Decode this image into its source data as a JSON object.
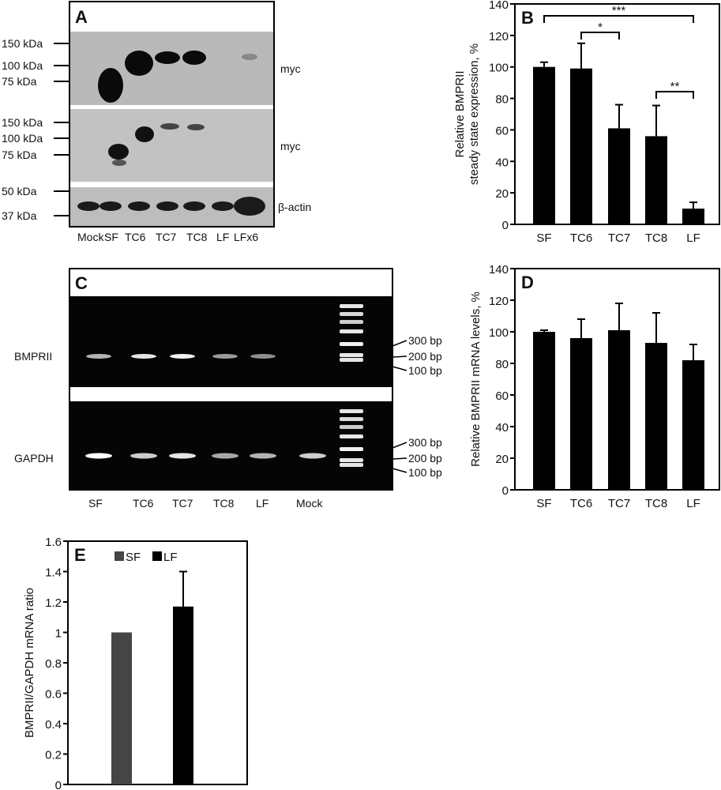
{
  "panel_a": {
    "letter": "A",
    "blot1_markers": [
      "150 kDa",
      "100 kDa",
      "75 kDa"
    ],
    "blot2_markers": [
      "150 kDa",
      "100 kDa",
      "75 kDa"
    ],
    "blot3_markers": [
      "50 kDa",
      "37 kDa"
    ],
    "blot1_label": "myc",
    "blot2_label": "myc",
    "blot3_label": "β-actin",
    "lanes": [
      "Mock",
      "SF",
      "TC6",
      "TC7",
      "TC8",
      "LF",
      "LFx6"
    ]
  },
  "panel_c": {
    "letter": "C",
    "gel1_label": "BMPRII",
    "gel2_label": "GAPDH",
    "ladder1": [
      "300 bp",
      "200 bp",
      "100 bp"
    ],
    "ladder2": [
      "300 bp",
      "200 bp",
      "100 bp"
    ],
    "lanes": [
      "SF",
      "TC6",
      "TC7",
      "TC8",
      "LF",
      "Mock"
    ]
  },
  "chart_data": [
    {
      "id": "B",
      "type": "bar",
      "letter": "B",
      "categories": [
        "SF",
        "TC6",
        "TC7",
        "TC8",
        "LF"
      ],
      "values": [
        100,
        99,
        61,
        56,
        10
      ],
      "errors": [
        3,
        16,
        15,
        19.5,
        4
      ],
      "ylabel_line1": "Relative BMPRII",
      "ylabel_line2": "steady state expression, %",
      "ylim": [
        0,
        140
      ],
      "yticks": [
        "0",
        "20",
        "40",
        "60",
        "80",
        "100",
        "120",
        "140"
      ],
      "significance": [
        {
          "from": "SF",
          "to": "LF",
          "label": "***"
        },
        {
          "from": "TC6",
          "to": "TC7",
          "label": "*"
        },
        {
          "from": "TC8",
          "to": "LF",
          "label": "**"
        }
      ],
      "color": "#000000"
    },
    {
      "id": "D",
      "type": "bar",
      "letter": "D",
      "categories": [
        "SF",
        "TC6",
        "TC7",
        "TC8",
        "LF"
      ],
      "values": [
        100,
        96,
        101,
        93,
        82
      ],
      "errors": [
        1,
        12,
        17,
        19,
        10
      ],
      "ylabel_line1": "Relative BMPRII mRNA levels, %",
      "ylim": [
        0,
        140
      ],
      "yticks": [
        "0",
        "20",
        "40",
        "60",
        "80",
        "100",
        "120",
        "140"
      ],
      "color": "#000000"
    },
    {
      "id": "E",
      "type": "bar",
      "letter": "E",
      "categories": [
        "SF",
        "LF"
      ],
      "values": [
        1.0,
        1.17
      ],
      "errors": [
        0,
        0.23
      ],
      "ylabel_line1": "BMPRII/GAPDH mRNA ratio",
      "ylim": [
        0,
        1.6
      ],
      "yticks": [
        "0",
        "0.2",
        "0.4",
        "0.6",
        "0.8",
        "1",
        "1.2",
        "1.4",
        "1.6"
      ],
      "legend": [
        {
          "name": "SF",
          "color": "#454545"
        },
        {
          "name": "LF",
          "color": "#000000"
        }
      ],
      "legend_position": "top"
    }
  ]
}
